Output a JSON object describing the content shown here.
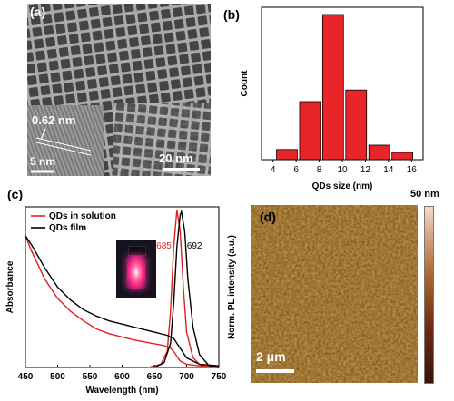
{
  "panel_a": {
    "label": "(a)",
    "lattice_label": "0.62 nm",
    "inset_scale": "5 nm",
    "scale_bar": "20 nm"
  },
  "panel_b": {
    "label": "(b)"
  },
  "panel_c": {
    "label": "(c)"
  },
  "panel_d": {
    "label": "(d)",
    "scale_bar": "2 μm",
    "colorbar_max": "50 nm",
    "colors": {
      "dark": "#3a120c",
      "mid": "#8b4a22",
      "light": "#e8c4b0"
    }
  },
  "chart_data": [
    {
      "type": "bar",
      "panel": "(b)",
      "xlabel": "QDs size (nm)",
      "ylabel": "Count",
      "xlim": [
        3,
        17
      ],
      "xticks": [
        4,
        6,
        8,
        10,
        12,
        14,
        16
      ],
      "bin_width": 1.8,
      "bins": [
        5.2,
        7.2,
        9.2,
        11.2,
        13.2,
        15.2
      ],
      "values": [
        0.07,
        0.4,
        1.0,
        0.48,
        0.1,
        0.05
      ],
      "ylim": [
        0,
        1.05
      ],
      "color": "#e8262a"
    },
    {
      "type": "line",
      "panel": "(c)",
      "xlabel": "Wavelength (nm)",
      "ylabel": "Absorbance",
      "ylabel_right": "Norm. PL intensity (a.u.)",
      "xlim": [
        450,
        750
      ],
      "xticks": [
        450,
        500,
        550,
        600,
        650,
        700,
        750
      ],
      "ylim": [
        0,
        1
      ],
      "legend": "top-left",
      "peak_labels": [
        {
          "text": "685",
          "x": 685,
          "color": "#e0201c"
        },
        {
          "text": "692",
          "x": 692,
          "color": "#000000"
        }
      ],
      "series": [
        {
          "name": "QDs in solution",
          "color": "#e0201c",
          "absorbance": {
            "x": [
              450,
              460,
              480,
              500,
              520,
              540,
              560,
              580,
              600,
              620,
              640,
              660,
              670,
              675,
              680,
              685,
              690,
              700,
              720,
              750
            ],
            "y": [
              0.82,
              0.72,
              0.55,
              0.43,
              0.35,
              0.29,
              0.24,
              0.21,
              0.19,
              0.17,
              0.155,
              0.14,
              0.13,
              0.12,
              0.1,
              0.07,
              0.04,
              0.02,
              0.01,
              0.005
            ]
          },
          "pl": {
            "x": [
              640,
              660,
              670,
              675,
              680,
              685,
              690,
              695,
              700,
              710,
              720,
              735,
              750
            ],
            "y": [
              0,
              0.02,
              0.1,
              0.35,
              0.75,
              0.98,
              0.85,
              0.5,
              0.22,
              0.06,
              0.02,
              0,
              0
            ]
          }
        },
        {
          "name": "QDs film",
          "color": "#000000",
          "absorbance": {
            "x": [
              450,
              460,
              480,
              500,
              520,
              540,
              560,
              580,
              600,
              620,
              640,
              660,
              670,
              680,
              690,
              700,
              720,
              750
            ],
            "y": [
              0.82,
              0.76,
              0.62,
              0.5,
              0.42,
              0.36,
              0.32,
              0.29,
              0.27,
              0.25,
              0.23,
              0.21,
              0.2,
              0.18,
              0.12,
              0.06,
              0.02,
              0.01
            ]
          },
          "pl": {
            "x": [
              650,
              665,
              675,
              680,
              685,
              690,
              692,
              697,
              702,
              710,
              720,
              735,
              750
            ],
            "y": [
              0,
              0.03,
              0.15,
              0.4,
              0.75,
              0.95,
              0.97,
              0.85,
              0.55,
              0.25,
              0.08,
              0.01,
              0
            ]
          }
        }
      ]
    }
  ]
}
